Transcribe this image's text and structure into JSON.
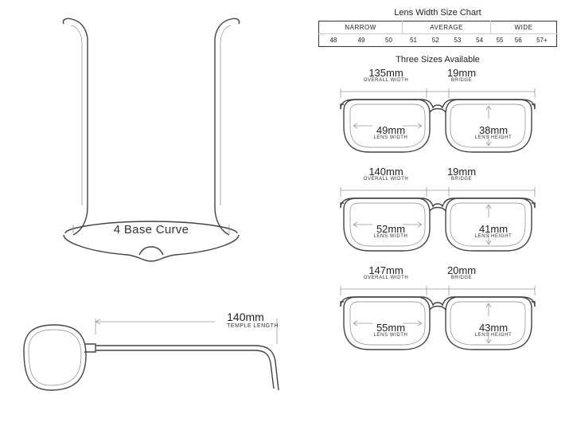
{
  "chart": {
    "title": "Lens Width Size Chart",
    "categories": [
      "NARROW",
      "AVERAGE",
      "WIDE"
    ],
    "category_spans": [
      3,
      4,
      3
    ],
    "values": [
      "48",
      "49",
      "50",
      "51",
      "52",
      "53",
      "54",
      "55",
      "56",
      "57+"
    ],
    "border_color": "#333333",
    "inner_line_color": "#cccccc"
  },
  "subtitle": "Three Sizes Available",
  "base_curve": "4 Base Curve",
  "temple": {
    "value": "140mm",
    "label": "TEMPLE LENGTH"
  },
  "sizes": [
    {
      "overall": {
        "value": "135mm",
        "label": "OVERALL WIDTH"
      },
      "bridge": {
        "value": "19mm",
        "label": "BRIDGE"
      },
      "lens_w": {
        "value": "49mm",
        "label": "LENS WIDTH"
      },
      "lens_h": {
        "value": "38mm",
        "label": "LENS HEIGHT"
      }
    },
    {
      "overall": {
        "value": "140mm",
        "label": "OVERALL WIDTH"
      },
      "bridge": {
        "value": "19mm",
        "label": "BRIDGE"
      },
      "lens_w": {
        "value": "52mm",
        "label": "LENS WIDTH"
      },
      "lens_h": {
        "value": "41mm",
        "label": "LENS HEIGHT"
      }
    },
    {
      "overall": {
        "value": "147mm",
        "label": "OVERALL WIDTH"
      },
      "bridge": {
        "value": "20mm",
        "label": "BRIDGE"
      },
      "lens_w": {
        "value": "55mm",
        "label": "LENS WIDTH"
      },
      "lens_h": {
        "value": "43mm",
        "label": "LENS HEIGHT"
      }
    }
  ],
  "style": {
    "bg": "#ffffff",
    "frame_stroke": "#444444",
    "dim_stroke": "#9a9a9a",
    "text_color": "#222222",
    "font_family": "Arial, Helvetica, sans-serif"
  }
}
